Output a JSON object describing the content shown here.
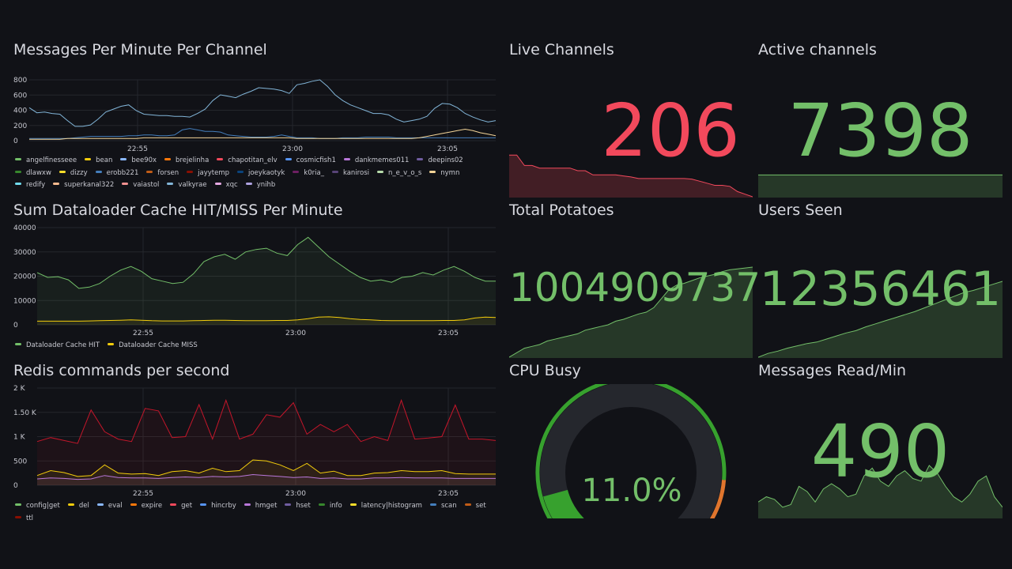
{
  "colors": {
    "green": "#73bf69",
    "red": "#f2495c",
    "bg": "#111217",
    "grid": "#2a2c33"
  },
  "panels": {
    "messages": {
      "title": "Messages Per Minute Per Channel",
      "legend": [
        {
          "label": "angelfinesseee",
          "color": "#73bf69"
        },
        {
          "label": "bean",
          "color": "#f2cc0c"
        },
        {
          "label": "bee90x",
          "color": "#8ab8ff"
        },
        {
          "label": "brejelinha",
          "color": "#ff780a"
        },
        {
          "label": "chapotitan_elv",
          "color": "#f2495c"
        },
        {
          "label": "cosmicfish1",
          "color": "#5794f2"
        },
        {
          "label": "dankmemes011",
          "color": "#b877d9"
        },
        {
          "label": "deepins02",
          "color": "#705da0"
        },
        {
          "label": "dlawxw",
          "color": "#37872d"
        },
        {
          "label": "dizzy",
          "color": "#fade2a"
        },
        {
          "label": "erobb221",
          "color": "#447ebc"
        },
        {
          "label": "forsen",
          "color": "#c15c17"
        },
        {
          "label": "jayytemp",
          "color": "#890f02"
        },
        {
          "label": "joeykaotyk",
          "color": "#0a437c"
        },
        {
          "label": "k0ria_",
          "color": "#6d1f62"
        },
        {
          "label": "kanirosi",
          "color": "#584477"
        },
        {
          "label": "n_e_v_o_s",
          "color": "#b7dbab"
        },
        {
          "label": "nymn",
          "color": "#f4d598"
        },
        {
          "label": "redify",
          "color": "#70dbed"
        },
        {
          "label": "superkanal322",
          "color": "#f9ba8f"
        },
        {
          "label": "vaiastol",
          "color": "#f29191"
        },
        {
          "label": "valkyrae",
          "color": "#82b5d8"
        },
        {
          "label": "xqc",
          "color": "#e5a8e2"
        },
        {
          "label": "ynihb",
          "color": "#aea2e0"
        }
      ],
      "chart_data": {
        "type": "line",
        "y_ticks": [
          "800",
          "600",
          "400",
          "200",
          "0"
        ],
        "ylim": [
          0,
          850
        ],
        "x_ticks": [
          "22:55",
          "23:00",
          "23:05"
        ],
        "series": [
          {
            "name": "valkyrae",
            "color": "#82b5d8",
            "values": [
              460,
              390,
              400,
              380,
              370,
              280,
              200,
              200,
              220,
              300,
              400,
              440,
              480,
              500,
              420,
              370,
              360,
              350,
              350,
              340,
              340,
              330,
              380,
              440,
              560,
              640,
              620,
              600,
              650,
              690,
              740,
              730,
              720,
              700,
              660,
              780,
              800,
              830,
              850,
              760,
              640,
              560,
              500,
              460,
              420,
              380,
              380,
              360,
              300,
              260,
              280,
              300,
              340,
              450,
              520,
              510,
              460,
              380,
              330,
              290,
              260,
              280
            ]
          },
          {
            "name": "erobb221",
            "color": "#447ebc",
            "values": [
              30,
              30,
              30,
              30,
              30,
              30,
              40,
              50,
              60,
              60,
              60,
              60,
              60,
              70,
              70,
              80,
              80,
              70,
              70,
              80,
              150,
              170,
              150,
              130,
              130,
              120,
              80,
              70,
              60,
              50,
              50,
              50,
              60,
              80,
              60,
              40,
              40,
              40,
              30,
              30,
              30,
              40,
              40,
              40,
              50,
              50,
              50,
              50,
              40,
              40,
              40,
              40,
              40,
              40,
              40,
              40,
              40,
              40,
              40,
              40,
              40,
              40
            ]
          },
          {
            "name": "nymn",
            "color": "#f4d598",
            "values": [
              20,
              20,
              20,
              20,
              20,
              30,
              30,
              30,
              30,
              30,
              30,
              30,
              30,
              30,
              30,
              40,
              40,
              40,
              40,
              40,
              40,
              40,
              40,
              40,
              40,
              40,
              40,
              40,
              40,
              40,
              40,
              40,
              40,
              40,
              40,
              30,
              30,
              30,
              30,
              30,
              30,
              30,
              30,
              30,
              30,
              30,
              30,
              30,
              30,
              30,
              30,
              40,
              60,
              80,
              100,
              120,
              140,
              160,
              140,
              110,
              90,
              70
            ]
          }
        ]
      }
    },
    "cache": {
      "title": "Sum Dataloader Cache HIT/MISS Per Minute",
      "legend": [
        {
          "label": "Dataloader Cache HIT",
          "color": "#73bf69"
        },
        {
          "label": "Dataloader Cache MISS",
          "color": "#f2cc0c"
        }
      ],
      "chart_data": {
        "type": "area",
        "y_ticks": [
          "40000",
          "30000",
          "20000",
          "10000",
          "0"
        ],
        "ylim": [
          0,
          40000
        ],
        "x_ticks": [
          "22:55",
          "23:00",
          "23:05"
        ],
        "series": [
          {
            "name": "Dataloader Cache HIT",
            "color": "#73bf69",
            "values": [
              21500,
              19500,
              19800,
              18500,
              15000,
              15500,
              17000,
              20000,
              22500,
              24000,
              22000,
              19000,
              18000,
              17000,
              17500,
              21000,
              26000,
              28000,
              29000,
              27000,
              30000,
              31000,
              31500,
              29500,
              28500,
              33000,
              36000,
              32000,
              28000,
              25000,
              22000,
              19500,
              18000,
              18500,
              17500,
              19500,
              20000,
              21500,
              20500,
              22500,
              24000,
              22000,
              19500,
              18000,
              18000
            ]
          },
          {
            "name": "Dataloader Cache MISS",
            "color": "#f2cc0c",
            "values": [
              1500,
              1500,
              1500,
              1500,
              1500,
              1600,
              1700,
              1800,
              1900,
              2000,
              1900,
              1700,
              1600,
              1600,
              1600,
              1700,
              1800,
              1900,
              1900,
              1800,
              1700,
              1700,
              1700,
              1800,
              1800,
              2000,
              2500,
              3200,
              3300,
              3000,
              2500,
              2200,
              2000,
              1800,
              1700,
              1700,
              1700,
              1700,
              1700,
              1800,
              1800,
              2000,
              2800,
              3200,
              3000
            ]
          }
        ]
      }
    },
    "redis": {
      "title": "Redis commands per second",
      "legend": [
        {
          "label": "config|get",
          "color": "#73bf69"
        },
        {
          "label": "del",
          "color": "#f2cc0c"
        },
        {
          "label": "eval",
          "color": "#8ab8ff"
        },
        {
          "label": "expire",
          "color": "#ff780a"
        },
        {
          "label": "get",
          "color": "#f2495c"
        },
        {
          "label": "hincrby",
          "color": "#5794f2"
        },
        {
          "label": "hmget",
          "color": "#b877d9"
        },
        {
          "label": "hset",
          "color": "#705da0"
        },
        {
          "label": "info",
          "color": "#37872d"
        },
        {
          "label": "latency|histogram",
          "color": "#fade2a"
        },
        {
          "label": "scan",
          "color": "#447ebc"
        },
        {
          "label": "set",
          "color": "#c15c17"
        },
        {
          "label": "ttl",
          "color": "#890f02"
        }
      ],
      "chart_data": {
        "type": "area",
        "y_ticks": [
          "2 K",
          "1.50 K",
          "1 K",
          "500",
          "0"
        ],
        "ylim": [
          0,
          2000
        ],
        "x_ticks": [
          "22:55",
          "23:00",
          "23:05"
        ],
        "series": [
          {
            "name": "ttl",
            "color": "#c4162a",
            "values": [
              900,
              980,
              920,
              860,
              1550,
              1100,
              950,
              900,
              1580,
              1530,
              980,
              1000,
              1660,
              950,
              1750,
              950,
              1050,
              1450,
              1400,
              1700,
              1050,
              1250,
              1100,
              1250,
              900,
              1000,
              920,
              1750,
              950,
              970,
              1000,
              1650,
              950,
              950,
              920
            ]
          },
          {
            "name": "del",
            "color": "#f2cc0c",
            "values": [
              200,
              300,
              260,
              180,
              200,
              420,
              250,
              230,
              240,
              200,
              280,
              300,
              250,
              350,
              280,
              300,
              520,
              500,
              420,
              300,
              450,
              250,
              290,
              200,
              200,
              250,
              260,
              300,
              280,
              280,
              300,
              240,
              230,
              230,
              230
            ]
          },
          {
            "name": "hmget",
            "color": "#b877d9",
            "values": [
              130,
              150,
              140,
              120,
              130,
              200,
              160,
              150,
              150,
              140,
              160,
              170,
              160,
              180,
              170,
              180,
              220,
              200,
              180,
              160,
              170,
              140,
              150,
              130,
              130,
              150,
              150,
              160,
              150,
              150,
              150,
              140,
              140,
              140,
              140
            ]
          }
        ]
      }
    },
    "live_channels": {
      "title": "Live Channels",
      "value": "206",
      "spark": [
        80,
        80,
        60,
        60,
        55,
        55,
        55,
        55,
        55,
        50,
        50,
        42,
        42,
        42,
        42,
        40,
        38,
        35,
        35,
        35,
        35,
        35,
        35,
        35,
        34,
        30,
        26,
        22,
        22,
        20,
        10,
        5,
        0
      ]
    },
    "active_channels": {
      "title": "Active channels",
      "value": "7398",
      "spark": [
        60,
        60,
        60,
        60,
        60,
        60,
        60,
        60,
        60,
        60,
        60,
        60
      ]
    },
    "total_potatoes": {
      "title": "Total Potatoes",
      "value": "1004909737",
      "spark": [
        0,
        5,
        10,
        12,
        14,
        18,
        20,
        22,
        24,
        26,
        30,
        32,
        34,
        36,
        40,
        42,
        45,
        48,
        50,
        55,
        65,
        75,
        80,
        82,
        85,
        88,
        90,
        92,
        95,
        97,
        98,
        99,
        100
      ]
    },
    "users_seen": {
      "title": "Users Seen",
      "value": "12356461",
      "spark": [
        0,
        5,
        8,
        12,
        15,
        18,
        20,
        24,
        28,
        32,
        35,
        40,
        44,
        48,
        52,
        56,
        60,
        65,
        70,
        75,
        80,
        85,
        88,
        92,
        96,
        100
      ]
    },
    "cpu_busy": {
      "title": "CPU Busy",
      "value_text": "11.0%",
      "value": 11.0
    },
    "messages_read": {
      "title": "Messages Read/Min",
      "value": "490",
      "spark": [
        30,
        40,
        35,
        20,
        25,
        60,
        50,
        30,
        55,
        65,
        55,
        40,
        45,
        80,
        95,
        70,
        60,
        80,
        90,
        75,
        70,
        100,
        85,
        60,
        40,
        30,
        45,
        70,
        80,
        40,
        20
      ]
    }
  }
}
